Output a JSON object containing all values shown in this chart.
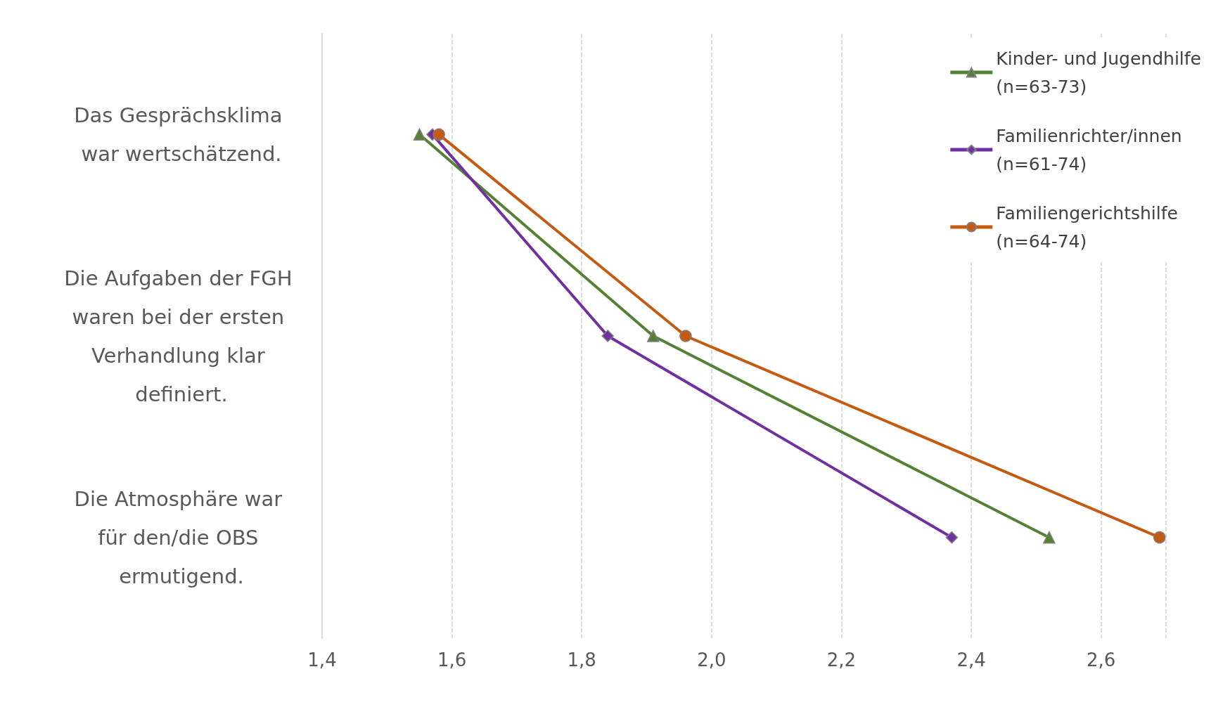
{
  "chart_data": {
    "type": "line",
    "orientation": "horizontal",
    "categories": [
      "Das Gesprächsklima war wertschätzend.",
      "Die Aufgaben der FGH waren bei der ersten Verhandlung klar definiert.",
      "Die Atmosphäre war für den/die OBS ermutigend."
    ],
    "series": [
      {
        "name": "Kinder- und Jugendhilfe\n(n=63-73)",
        "color": "#548235",
        "marker": "triangle",
        "values": [
          1.55,
          1.91,
          2.52
        ]
      },
      {
        "name": "Familienrichter/innen\n(n=61-74)",
        "color": "#7030a0",
        "marker": "diamond",
        "values": [
          1.57,
          1.84,
          2.37
        ]
      },
      {
        "name": "Familiengerichtshilfe\n(n=64-74)",
        "color": "#c55a11",
        "marker": "circle",
        "values": [
          1.58,
          1.96,
          2.69
        ]
      }
    ],
    "xlim": [
      1.4,
      2.7
    ],
    "xticks": [
      {
        "value": 1.4,
        "label": "1,4"
      },
      {
        "value": 1.6,
        "label": "1,6"
      },
      {
        "value": 1.8,
        "label": "1,8"
      },
      {
        "value": 2.0,
        "label": "2,0"
      },
      {
        "value": 2.2,
        "label": "2,2"
      },
      {
        "value": 2.4,
        "label": "2,4"
      },
      {
        "value": 2.6,
        "label": "2,6"
      }
    ],
    "grid": "x",
    "legend": "top right"
  }
}
